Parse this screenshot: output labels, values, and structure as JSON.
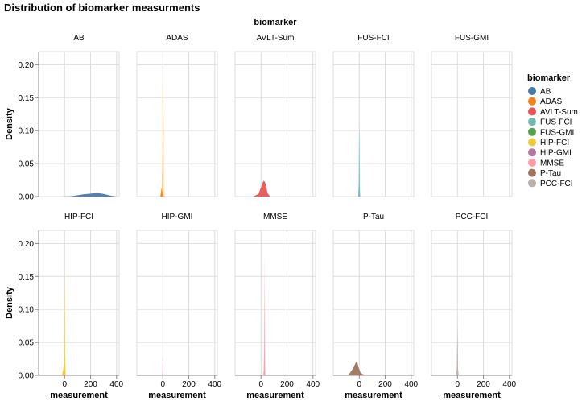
{
  "chart_data": {
    "type": "area",
    "title": "Distribution of biomarker measurments",
    "facet_title": "biomarker",
    "xlabel": "measurement",
    "ylabel": "Density",
    "xlim": [
      -200,
      420
    ],
    "ylim": [
      0,
      0.22
    ],
    "x_ticks": [
      0,
      200,
      400
    ],
    "y_ticks": [
      0.0,
      0.05,
      0.1,
      0.15,
      0.2
    ],
    "x_tick_labels": [
      "0",
      "200",
      "400"
    ],
    "y_tick_labels": [
      "0.00",
      "0.05",
      "0.10",
      "0.15",
      "0.20"
    ],
    "legend": {
      "title": "biomarker",
      "position": "right",
      "entries": [
        "AB",
        "ADAS",
        "AVLT-Sum",
        "FUS-FCI",
        "FUS-GMI",
        "HIP-FCI",
        "HIP-GMI",
        "MMSE",
        "P-Tau",
        "PCC-FCI"
      ]
    },
    "series": [
      {
        "name": "AB",
        "color": "#4c78a8",
        "x": [
          -30,
          50,
          100,
          150,
          200,
          250,
          300,
          350,
          400
        ],
        "y": [
          0,
          0.0005,
          0.002,
          0.0035,
          0.0045,
          0.0055,
          0.004,
          0.0015,
          0
        ]
      },
      {
        "name": "ADAS",
        "color": "#f58518",
        "x": [
          -20,
          -15,
          -10,
          -5,
          -3,
          -1,
          0,
          2,
          4,
          8
        ],
        "y": [
          0,
          0.005,
          0.014,
          0.005,
          0.04,
          0.12,
          0.18,
          0.04,
          0.005,
          0
        ]
      },
      {
        "name": "AVLT-Sum",
        "color": "#e45756",
        "x": [
          -60,
          -20,
          0,
          10,
          20,
          30,
          40,
          50,
          70
        ],
        "y": [
          0,
          0.004,
          0.014,
          0.02,
          0.024,
          0.022,
          0.015,
          0.005,
          0
        ]
      },
      {
        "name": "FUS-FCI",
        "color": "#72b7b2",
        "x": [
          -8,
          -4,
          -2,
          0,
          2,
          4,
          8
        ],
        "y": [
          0,
          0.02,
          0.08,
          0.112,
          0.07,
          0.015,
          0
        ]
      },
      {
        "name": "FUS-GMI",
        "color": "#54a24b",
        "x": [
          -1,
          0,
          1
        ],
        "y": [
          0,
          0,
          0
        ]
      },
      {
        "name": "HIP-FCI",
        "color": "#eeca3b",
        "x": [
          -20,
          -10,
          -5,
          0,
          2,
          5,
          8
        ],
        "y": [
          0,
          0.01,
          0.02,
          0.03,
          0.162,
          0.02,
          0
        ]
      },
      {
        "name": "HIP-GMI",
        "color": "#b279a2",
        "x": [
          -3,
          0,
          3
        ],
        "y": [
          0,
          0.03,
          0
        ]
      },
      {
        "name": "MMSE",
        "color": "#ff9da6",
        "x": [
          15,
          20,
          24,
          27,
          29,
          31,
          34
        ],
        "y": [
          0,
          0.005,
          0.04,
          0.185,
          0.06,
          0.01,
          0
        ]
      },
      {
        "name": "P-Tau",
        "color": "#9d755d",
        "x": [
          -90,
          -70,
          -50,
          -35,
          -25,
          -15,
          -5,
          10,
          30,
          60
        ],
        "y": [
          0,
          0.004,
          0.01,
          0.016,
          0.02,
          0.02,
          0.012,
          0.004,
          0.0015,
          0
        ]
      },
      {
        "name": "PCC-FCI",
        "color": "#bab0ac",
        "x": [
          -10,
          -5,
          -2,
          0,
          2,
          5,
          10
        ],
        "y": [
          0,
          0.01,
          0.05,
          0.078,
          0.05,
          0.01,
          0
        ]
      }
    ]
  }
}
